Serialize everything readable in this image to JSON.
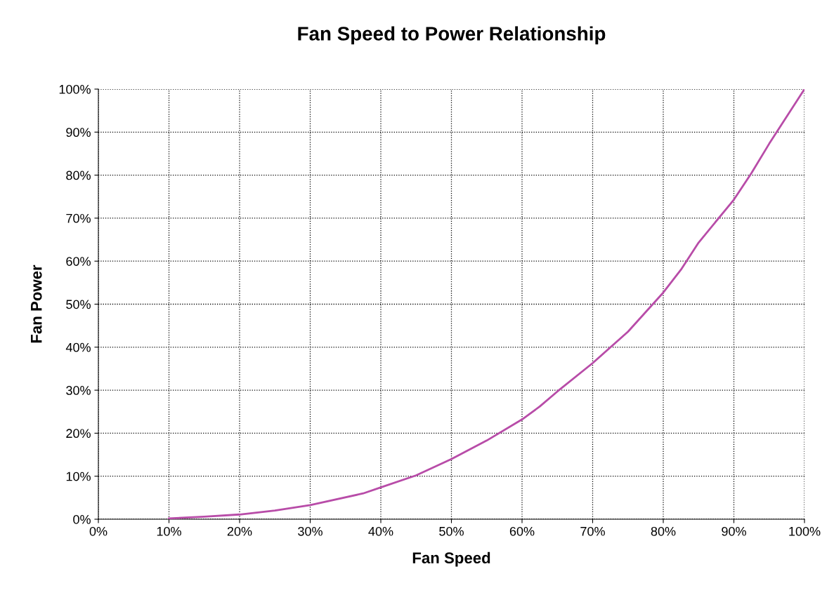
{
  "chart_data": {
    "type": "line",
    "title": "Fan Speed to Power Relationship",
    "xlabel": "Fan Speed",
    "ylabel": "Fan Power",
    "x": [
      10,
      15,
      20,
      25,
      30,
      37.5,
      40,
      45,
      50,
      55,
      60,
      62.5,
      65,
      70,
      75,
      80,
      82.5,
      85,
      90,
      92.5,
      95,
      100
    ],
    "series": [
      {
        "color": "#b84ca8",
        "values": [
          0.2,
          0.6,
          1.1,
          2,
          3.3,
          6,
          7.4,
          10.2,
          14,
          18.3,
          23.2,
          26.2,
          29.7,
          36.3,
          43.6,
          52.7,
          58,
          64.3,
          74.3,
          80.5,
          87.3,
          100
        ]
      }
    ],
    "xlim": [
      0,
      100
    ],
    "ylim": [
      0,
      100
    ],
    "xticks": [
      {
        "value": 0,
        "label": "0%"
      },
      {
        "value": 10,
        "label": "10%"
      },
      {
        "value": 20,
        "label": "20%"
      },
      {
        "value": 30,
        "label": "30%"
      },
      {
        "value": 40,
        "label": "40%"
      },
      {
        "value": 50,
        "label": "50%"
      },
      {
        "value": 60,
        "label": "60%"
      },
      {
        "value": 70,
        "label": "70%"
      },
      {
        "value": 80,
        "label": "80%"
      },
      {
        "value": 90,
        "label": "90%"
      },
      {
        "value": 100,
        "label": "100%"
      }
    ],
    "yticks": [
      {
        "value": 0,
        "label": "0%"
      },
      {
        "value": 10,
        "label": "10%"
      },
      {
        "value": 20,
        "label": "20%"
      },
      {
        "value": 30,
        "label": "30%"
      },
      {
        "value": 40,
        "label": "40%"
      },
      {
        "value": 50,
        "label": "50%"
      },
      {
        "value": 60,
        "label": "60%"
      },
      {
        "value": 70,
        "label": "70%"
      },
      {
        "value": 80,
        "label": "80%"
      },
      {
        "value": 90,
        "label": "90%"
      },
      {
        "value": 100,
        "label": "100%"
      }
    ],
    "grid": true,
    "marker": "none",
    "line_style": "solid"
  }
}
